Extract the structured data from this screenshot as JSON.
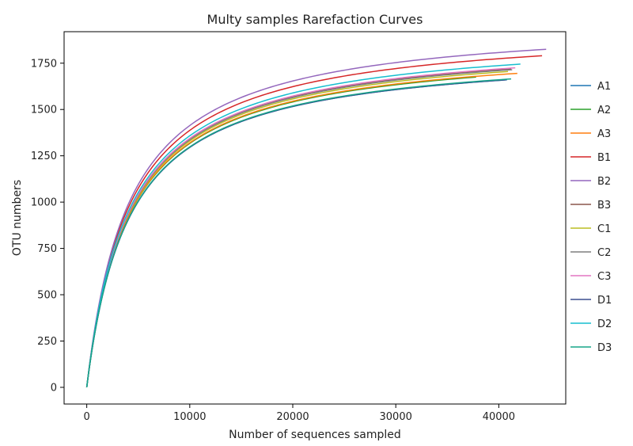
{
  "chart_data": {
    "type": "line",
    "title": "Multy samples Rarefaction Curves",
    "xlabel": "Number of sequences sampled",
    "ylabel": "OTU numbers",
    "xlim": [
      -2200,
      46500
    ],
    "ylim": [
      -90,
      1920
    ],
    "xticks": [
      0,
      10000,
      20000,
      30000,
      40000
    ],
    "yticks": [
      0,
      250,
      500,
      750,
      1000,
      1250,
      1500,
      1750
    ],
    "grid": false,
    "legend_position": "right",
    "series": [
      {
        "name": "A1",
        "color": "#1f77b4",
        "max_x": 40800,
        "final_y": 1660
      },
      {
        "name": "A2",
        "color": "#2ca02c",
        "max_x": 37800,
        "final_y": 1675
      },
      {
        "name": "A3",
        "color": "#ff7f0e",
        "max_x": 41800,
        "final_y": 1695
      },
      {
        "name": "B1",
        "color": "#d62728",
        "max_x": 44200,
        "final_y": 1790
      },
      {
        "name": "B2",
        "color": "#9467bd",
        "max_x": 44600,
        "final_y": 1825
      },
      {
        "name": "B3",
        "color": "#8c564b",
        "max_x": 41200,
        "final_y": 1720
      },
      {
        "name": "C1",
        "color": "#bcbd22",
        "max_x": 40900,
        "final_y": 1705
      },
      {
        "name": "C2",
        "color": "#7f7f7f",
        "max_x": 41300,
        "final_y": 1715
      },
      {
        "name": "C3",
        "color": "#e377c2",
        "max_x": 41600,
        "final_y": 1725
      },
      {
        "name": "D1",
        "color": "#3b4f8f",
        "max_x": 40700,
        "final_y": 1660
      },
      {
        "name": "D2",
        "color": "#17becf",
        "max_x": 42100,
        "final_y": 1745
      },
      {
        "name": "D3",
        "color": "#17a589",
        "max_x": 41200,
        "final_y": 1665
      }
    ]
  }
}
